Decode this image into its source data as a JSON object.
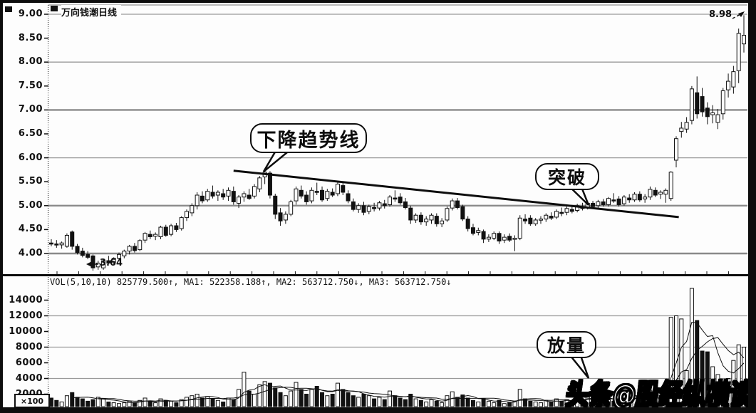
{
  "window": {
    "title": "万向钱潮日线"
  },
  "price_panel": {
    "tick_labels": [
      "9.00",
      "8.50",
      "8.00",
      "7.50",
      "7.00",
      "6.50",
      "6.00",
      "5.50",
      "5.00",
      "4.50",
      "4.00"
    ],
    "high_label": "8.98",
    "low_label": "3.64",
    "trendline_annotation": "下降趋势线",
    "breakout_annotation": "突破"
  },
  "volume_panel": {
    "header": "VOL(5,10,10) 825779.500↑, MA1: 522358.188↑, MA2: 563712.750↓, MA3: 563712.750↓",
    "tick_labels": [
      "14000",
      "12000",
      "10000",
      "8000",
      "6000",
      "4000",
      "2000"
    ],
    "unit_label": "×100",
    "volume_annotation": "放量"
  },
  "watermark": "头条@股经纵横谈",
  "chart_data": {
    "type": "candlestick+volume",
    "title": "万向钱潮日线",
    "price_ylim": [
      3.5,
      9.2
    ],
    "price_gridlines": [
      4,
      5,
      6,
      7,
      8,
      9
    ],
    "price_ticks": [
      9.0,
      8.5,
      8.0,
      7.5,
      7.0,
      6.5,
      6.0,
      5.5,
      5.0,
      4.5,
      4.0
    ],
    "volume_gridlines": [
      4000,
      8000,
      12000
    ],
    "volume_ticks": [
      14000,
      12000,
      10000,
      8000,
      6000,
      4000,
      2000
    ],
    "volume_unit": "×100",
    "marked_low": 3.64,
    "last_high": 8.98,
    "trendline": {
      "from": {
        "index": 35,
        "price": 5.73
      },
      "to": {
        "index": 120.5,
        "price": 4.76
      }
    },
    "candles": [
      [
        4.22,
        4.3,
        4.15,
        4.2
      ],
      [
        4.2,
        4.28,
        4.12,
        4.18
      ],
      [
        4.18,
        4.25,
        4.1,
        4.22
      ],
      [
        4.15,
        4.42,
        4.12,
        4.38
      ],
      [
        4.45,
        4.48,
        4.08,
        4.15
      ],
      [
        4.15,
        4.2,
        3.98,
        4.02
      ],
      [
        4.05,
        4.12,
        3.92,
        3.96
      ],
      [
        3.98,
        4.05,
        3.88,
        3.92
      ],
      [
        3.95,
        3.98,
        3.64,
        3.7
      ],
      [
        3.72,
        3.85,
        3.66,
        3.8
      ],
      [
        3.7,
        3.88,
        3.66,
        3.85
      ],
      [
        3.85,
        3.95,
        3.78,
        3.8
      ],
      [
        3.82,
        3.92,
        3.76,
        3.9
      ],
      [
        3.9,
        4.02,
        3.85,
        3.98
      ],
      [
        3.95,
        4.08,
        3.9,
        4.05
      ],
      [
        4.05,
        4.18,
        3.98,
        4.15
      ],
      [
        4.15,
        4.22,
        4.02,
        4.06
      ],
      [
        4.08,
        4.3,
        4.05,
        4.27
      ],
      [
        4.28,
        4.45,
        4.22,
        4.42
      ],
      [
        4.4,
        4.48,
        4.3,
        4.35
      ],
      [
        4.36,
        4.44,
        4.28,
        4.4
      ],
      [
        4.35,
        4.58,
        4.3,
        4.55
      ],
      [
        4.55,
        4.6,
        4.35,
        4.38
      ],
      [
        4.4,
        4.62,
        4.36,
        4.58
      ],
      [
        4.58,
        4.64,
        4.45,
        4.5
      ],
      [
        4.52,
        4.78,
        4.48,
        4.75
      ],
      [
        4.75,
        4.92,
        4.68,
        4.88
      ],
      [
        4.85,
        5.05,
        4.78,
        5.0
      ],
      [
        5.0,
        5.28,
        4.92,
        5.22
      ],
      [
        5.2,
        5.3,
        5.05,
        5.1
      ],
      [
        5.12,
        5.35,
        5.08,
        5.3
      ],
      [
        5.28,
        5.42,
        5.15,
        5.2
      ],
      [
        5.22,
        5.32,
        5.1,
        5.28
      ],
      [
        5.25,
        5.35,
        5.12,
        5.18
      ],
      [
        5.2,
        5.38,
        5.1,
        5.32
      ],
      [
        5.3,
        5.4,
        5.02,
        5.08
      ],
      [
        5.05,
        5.22,
        4.95,
        5.18
      ],
      [
        5.18,
        5.3,
        5.08,
        5.25
      ],
      [
        5.22,
        5.35,
        5.12,
        5.15
      ],
      [
        5.2,
        5.45,
        5.15,
        5.4
      ],
      [
        5.35,
        5.62,
        5.28,
        5.58
      ],
      [
        5.6,
        5.75,
        5.45,
        5.7
      ],
      [
        5.68,
        5.72,
        5.15,
        5.22
      ],
      [
        5.2,
        5.25,
        4.72,
        4.82
      ],
      [
        4.85,
        4.95,
        4.58,
        4.68
      ],
      [
        4.7,
        4.88,
        4.62,
        4.82
      ],
      [
        4.82,
        5.12,
        4.78,
        5.08
      ],
      [
        5.1,
        5.4,
        5.02,
        5.35
      ],
      [
        5.32,
        5.42,
        5.15,
        5.2
      ],
      [
        5.22,
        5.3,
        5.02,
        5.08
      ],
      [
        5.1,
        5.38,
        5.05,
        5.32
      ],
      [
        5.3,
        5.48,
        5.22,
        5.28
      ],
      [
        5.32,
        5.4,
        5.08,
        5.12
      ],
      [
        5.15,
        5.35,
        5.1,
        5.3
      ],
      [
        5.28,
        5.36,
        5.18,
        5.22
      ],
      [
        5.25,
        5.52,
        5.2,
        5.45
      ],
      [
        5.42,
        5.5,
        5.22,
        5.28
      ],
      [
        5.25,
        5.32,
        5.05,
        5.1
      ],
      [
        5.08,
        5.15,
        4.88,
        4.92
      ],
      [
        4.92,
        5.05,
        4.85,
        5.0
      ],
      [
        5.0,
        5.08,
        4.8,
        4.86
      ],
      [
        4.88,
        5.02,
        4.82,
        4.98
      ],
      [
        4.96,
        5.06,
        4.88,
        4.94
      ],
      [
        4.95,
        5.1,
        4.9,
        5.06
      ],
      [
        5.04,
        5.12,
        4.94,
        5.0
      ],
      [
        5.02,
        5.22,
        4.98,
        5.18
      ],
      [
        5.16,
        5.32,
        5.08,
        5.14
      ],
      [
        5.18,
        5.26,
        5.02,
        5.06
      ],
      [
        5.08,
        5.16,
        4.92,
        4.96
      ],
      [
        4.95,
        5.0,
        4.62,
        4.7
      ],
      [
        4.7,
        4.84,
        4.64,
        4.8
      ],
      [
        4.8,
        4.86,
        4.6,
        4.66
      ],
      [
        4.66,
        4.78,
        4.58,
        4.72
      ],
      [
        4.7,
        4.84,
        4.62,
        4.8
      ],
      [
        4.78,
        4.84,
        4.56,
        4.62
      ],
      [
        4.62,
        4.74,
        4.55,
        4.68
      ],
      [
        4.7,
        4.98,
        4.66,
        4.94
      ],
      [
        4.95,
        5.15,
        4.9,
        5.1
      ],
      [
        5.1,
        5.16,
        4.92,
        4.96
      ],
      [
        4.98,
        5.02,
        4.68,
        4.72
      ],
      [
        4.72,
        4.78,
        4.46,
        4.52
      ],
      [
        4.54,
        4.62,
        4.38,
        4.42
      ],
      [
        4.44,
        4.54,
        4.38,
        4.48
      ],
      [
        4.46,
        4.5,
        4.22,
        4.3
      ],
      [
        4.3,
        4.4,
        4.24,
        4.34
      ],
      [
        4.32,
        4.46,
        4.28,
        4.42
      ],
      [
        4.42,
        4.46,
        4.2,
        4.26
      ],
      [
        4.28,
        4.4,
        4.22,
        4.34
      ],
      [
        4.36,
        4.42,
        4.24,
        4.28
      ],
      [
        4.3,
        4.38,
        4.05,
        4.32
      ],
      [
        4.32,
        4.8,
        4.28,
        4.74
      ],
      [
        4.72,
        4.82,
        4.62,
        4.68
      ],
      [
        4.74,
        4.8,
        4.58,
        4.62
      ],
      [
        4.62,
        4.74,
        4.58,
        4.7
      ],
      [
        4.7,
        4.78,
        4.62,
        4.72
      ],
      [
        4.72,
        4.84,
        4.66,
        4.8
      ],
      [
        4.78,
        4.86,
        4.7,
        4.74
      ],
      [
        4.76,
        4.92,
        4.72,
        4.88
      ],
      [
        4.86,
        4.96,
        4.78,
        4.84
      ],
      [
        4.86,
        4.98,
        4.8,
        4.94
      ],
      [
        4.92,
        5.0,
        4.84,
        4.88
      ],
      [
        4.9,
        5.04,
        4.86,
        5.0
      ],
      [
        4.98,
        5.06,
        4.9,
        4.94
      ],
      [
        4.96,
        5.08,
        4.92,
        5.05
      ],
      [
        5.05,
        5.1,
        4.94,
        4.98
      ],
      [
        5.0,
        5.12,
        4.95,
        5.08
      ],
      [
        5.08,
        5.14,
        4.98,
        5.02
      ],
      [
        5.02,
        5.18,
        4.98,
        5.15
      ],
      [
        5.12,
        5.26,
        5.06,
        5.1
      ],
      [
        5.14,
        5.2,
        4.98,
        5.02
      ],
      [
        5.04,
        5.22,
        5.0,
        5.18
      ],
      [
        5.16,
        5.24,
        5.06,
        5.12
      ],
      [
        5.12,
        5.28,
        5.08,
        5.24
      ],
      [
        5.24,
        5.3,
        5.08,
        5.12
      ],
      [
        5.14,
        5.24,
        5.06,
        5.18
      ],
      [
        5.18,
        5.4,
        5.12,
        5.34
      ],
      [
        5.32,
        5.38,
        5.18,
        5.22
      ],
      [
        5.24,
        5.32,
        5.14,
        5.28
      ],
      [
        5.24,
        5.36,
        5.06,
        5.32
      ],
      [
        5.15,
        5.72,
        5.1,
        5.7
      ],
      [
        5.95,
        6.45,
        5.8,
        6.4
      ],
      [
        6.55,
        6.75,
        6.42,
        6.62
      ],
      [
        6.6,
        6.85,
        6.52,
        6.74
      ],
      [
        6.78,
        7.5,
        6.7,
        7.44
      ],
      [
        7.36,
        7.7,
        6.82,
        6.92
      ],
      [
        7.28,
        7.46,
        6.86,
        6.96
      ],
      [
        7.04,
        7.16,
        6.7,
        6.86
      ],
      [
        6.9,
        7.1,
        6.72,
        6.94
      ],
      [
        6.74,
        7.02,
        6.6,
        6.9
      ],
      [
        6.92,
        7.46,
        6.8,
        7.4
      ],
      [
        7.42,
        7.76,
        7.26,
        7.6
      ],
      [
        7.48,
        7.92,
        7.34,
        7.8
      ],
      [
        7.82,
        8.7,
        7.56,
        8.6
      ],
      [
        8.38,
        8.98,
        8.2,
        8.56
      ]
    ],
    "volumes": [
      1500,
      1200,
      1000,
      1800,
      2200,
      1600,
      1400,
      1100,
      1300,
      1600,
      1400,
      1000,
      900,
      800,
      900,
      1100,
      900,
      1200,
      1500,
      1100,
      900,
      1400,
      1200,
      1100,
      900,
      1300,
      1600,
      1800,
      2000,
      1500,
      1700,
      1400,
      1200,
      1000,
      1500,
      1300,
      2600,
      4800,
      2400,
      2000,
      3200,
      3600,
      3400,
      2800,
      2200,
      1800,
      2400,
      3500,
      2600,
      2000,
      2600,
      3000,
      2200,
      1800,
      2000,
      3400,
      2600,
      2200,
      1800,
      1600,
      2000,
      1800,
      1400,
      1600,
      1300,
      2400,
      1800,
      1500,
      1300,
      2000,
      1400,
      1200,
      1000,
      1300,
      1100,
      900,
      1800,
      2300,
      1600,
      1900,
      1500,
      1200,
      1000,
      1400,
      1100,
      900,
      1200,
      800,
      900,
      1100,
      2600,
      1400,
      1100,
      1000,
      900,
      1200,
      1000,
      1400,
      1100,
      1300,
      1000,
      1500,
      1200,
      2200,
      1400,
      1600,
      1200,
      1500,
      1100,
      1300,
      1600,
      1200,
      1800,
      1400,
      1100,
      2500,
      1600,
      1300,
      3200,
      11800,
      12000,
      11600,
      5000,
      15500,
      11400,
      7500,
      7400,
      5500,
      4500,
      3200,
      4000,
      6300,
      8300,
      8000
    ],
    "volume_ma_periods": [
      5,
      10
    ]
  }
}
